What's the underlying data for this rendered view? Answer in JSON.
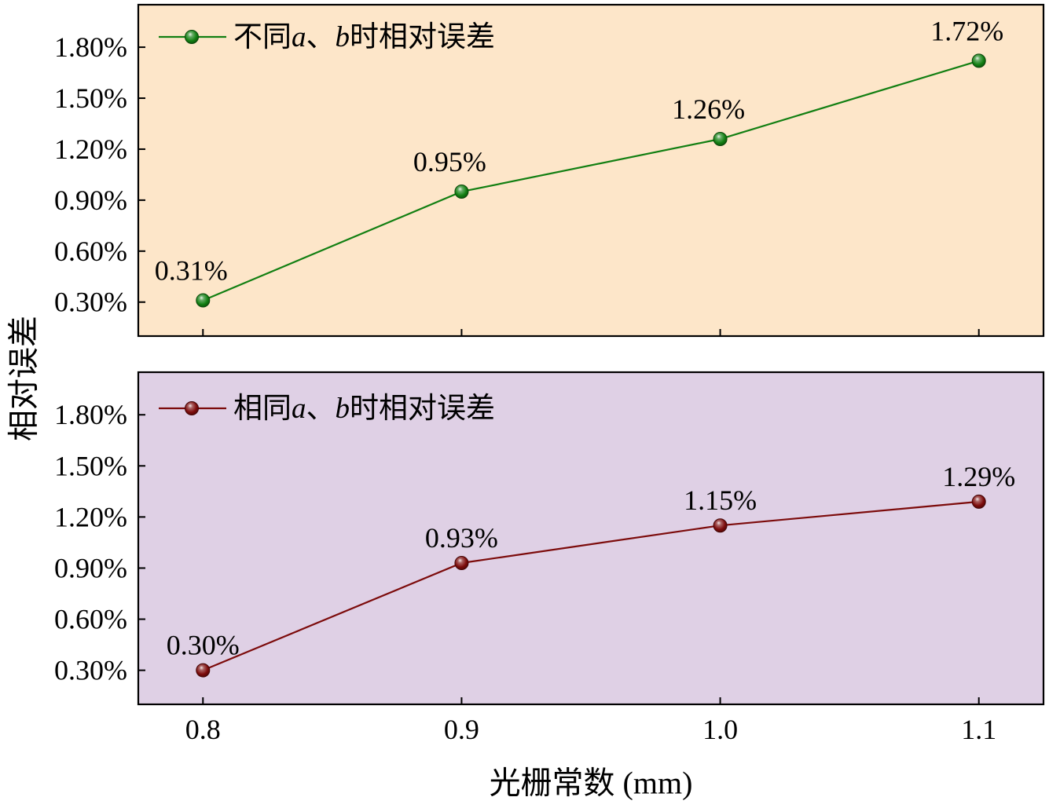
{
  "chart_data": {
    "type": "line",
    "x": [
      0.8,
      0.9,
      1.0,
      1.1
    ],
    "xticks": [
      0.8,
      0.9,
      1.0,
      1.1
    ],
    "xtick_labels": [
      "0.8",
      "0.9",
      "1.0",
      "1.1"
    ],
    "xlim": [
      0.775,
      1.125
    ],
    "xlabel": "光栅常数 (mm)",
    "ylabel": "相对误差",
    "grid": false,
    "panels": [
      {
        "background": "#fde6c9",
        "ylim": [
          0.1,
          2.05
        ],
        "yticks": [
          0.3,
          0.6,
          0.9,
          1.2,
          1.5,
          1.8
        ],
        "ytick_labels": [
          "0.30%",
          "0.60%",
          "0.90%",
          "1.20%",
          "1.50%",
          "1.80%"
        ],
        "legend": "top-left",
        "series": [
          {
            "name": "不同a、b时相对误差",
            "values": [
              0.31,
              0.95,
              1.26,
              1.72
            ],
            "labels": [
              "0.31%",
              "0.95%",
              "1.26%",
              "1.72%"
            ],
            "color": "#127f12"
          }
        ]
      },
      {
        "background": "#dfd0e5",
        "ylim": [
          0.1,
          2.05
        ],
        "yticks": [
          0.3,
          0.6,
          0.9,
          1.2,
          1.5,
          1.8
        ],
        "ytick_labels": [
          "0.30%",
          "0.60%",
          "0.90%",
          "1.20%",
          "1.50%",
          "1.80%"
        ],
        "legend": "top-left",
        "series": [
          {
            "name": "相同a、b时相对误差",
            "values": [
              0.3,
              0.93,
              1.15,
              1.29
            ],
            "labels": [
              "0.30%",
              "0.93%",
              "1.15%",
              "1.29%"
            ],
            "color": "#7c0b0b"
          }
        ]
      }
    ]
  }
}
